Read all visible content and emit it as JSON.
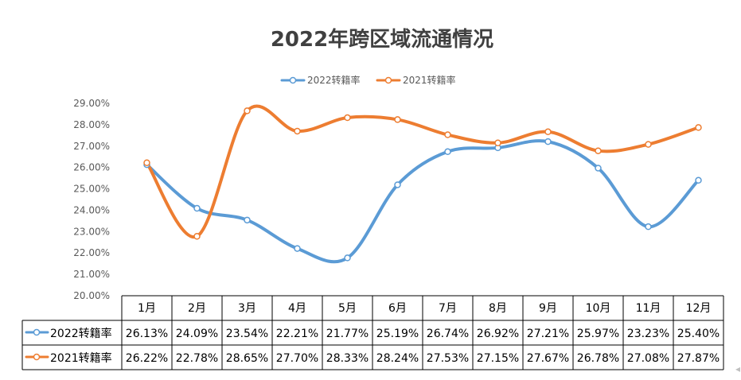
{
  "chart_data": {
    "type": "line",
    "title": "2022年跨区域流通情况",
    "categories": [
      "1月",
      "2月",
      "3月",
      "4月",
      "5月",
      "6月",
      "7月",
      "8月",
      "9月",
      "10月",
      "11月",
      "12月"
    ],
    "series": [
      {
        "name": "2022转籍率",
        "color": "#5b9bd5",
        "values": [
          26.13,
          24.09,
          23.54,
          22.21,
          21.77,
          25.19,
          26.74,
          26.92,
          27.21,
          25.97,
          23.23,
          25.4
        ],
        "labels": [
          "26.13%",
          "24.09%",
          "23.54%",
          "22.21%",
          "21.77%",
          "25.19%",
          "26.74%",
          "26.92%",
          "27.21%",
          "25.97%",
          "23.23%",
          "25.40%"
        ]
      },
      {
        "name": "2021转籍率",
        "color": "#ed7d31",
        "values": [
          26.22,
          22.78,
          28.65,
          27.7,
          28.33,
          28.24,
          27.53,
          27.15,
          27.67,
          26.78,
          27.08,
          27.87
        ],
        "labels": [
          "26.22%",
          "22.78%",
          "28.65%",
          "27.70%",
          "28.33%",
          "28.24%",
          "27.53%",
          "27.15%",
          "27.67%",
          "26.78%",
          "27.08%",
          "27.87%"
        ]
      }
    ],
    "ylim": [
      20,
      29
    ],
    "yticks": [
      "29.00%",
      "28.00%",
      "27.00%",
      "26.00%",
      "25.00%",
      "24.00%",
      "23.00%",
      "22.00%",
      "21.00%",
      "20.00%"
    ],
    "xlabel": "",
    "ylabel": "",
    "grid": false,
    "legend_position": "top",
    "data_table": true,
    "smooth": true
  }
}
